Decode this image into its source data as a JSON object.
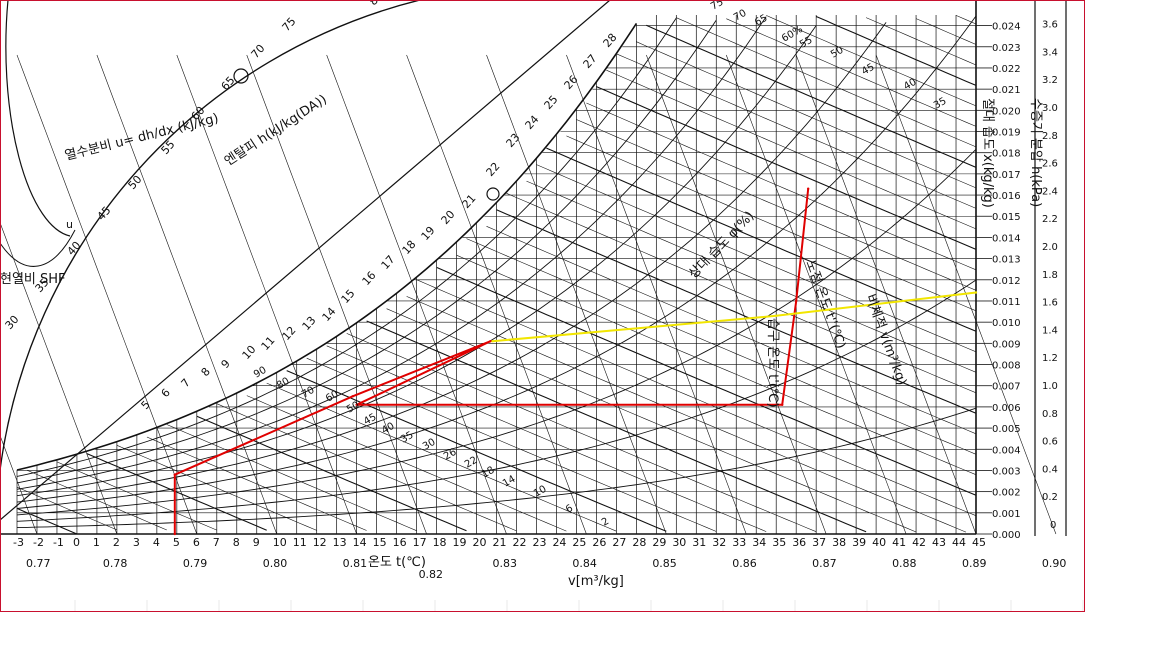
{
  "chart_data": {
    "type": "line",
    "labels": {
      "x_axis": "온도 t(℃)",
      "v_axis": "v[m³/kg]",
      "enthalpy": "엔탈피 h(kJ/kg(DA))",
      "rh": "상대 습도 φ(%)",
      "shf": "현열비 SHF",
      "heat_ratio": "열수분비 u= dh/dx (kJ/kg)",
      "abs_humidity": "절대 습도 x(kg/kg)",
      "vapor_pressure": "수증기 분압 h(kPa)",
      "wet_bulb": "습구 온도 t'(℃)",
      "dew_point": "노점 온도 t''(℃)",
      "spec_volume": "비체적 v(m³/kg)",
      "u_symbol": "u"
    },
    "x_ticks": [
      -3,
      -2,
      -1,
      0,
      1,
      2,
      3,
      4,
      5,
      6,
      7,
      8,
      9,
      10,
      11,
      12,
      13,
      14,
      15,
      16,
      17,
      18,
      19,
      20,
      21,
      22,
      23,
      24,
      25,
      26,
      27,
      28,
      29,
      30,
      31,
      32,
      33,
      34,
      35,
      36,
      37,
      38,
      39,
      40,
      41,
      42,
      43,
      44,
      45
    ],
    "xlim": [
      -3,
      45
    ],
    "y_ticks": [
      "0.000",
      "0.001",
      "0.002",
      "0.003",
      "0.004",
      "0.005",
      "0.006",
      "0.007",
      "0.008",
      "0.009",
      "0.010",
      "0.011",
      "0.012",
      "0.013",
      "0.014",
      "0.015",
      "0.016",
      "0.017",
      "0.018",
      "0.019",
      "0.020",
      "0.021",
      "0.022",
      "0.023",
      "0.024"
    ],
    "ylim": [
      0,
      0.0245
    ],
    "vapor_pressure_ticks": [
      "0",
      "0.2",
      "0.4",
      "0.6",
      "0.8",
      "1.0",
      "1.2",
      "1.4",
      "1.6",
      "1.8",
      "2.0",
      "2.2",
      "2.4",
      "2.6",
      "2.8",
      "3.0",
      "3.2",
      "3.4",
      "3.6"
    ],
    "v_ticks": [
      {
        "label": "0.77",
        "t": -2
      },
      {
        "label": "0.78",
        "t": 2
      },
      {
        "label": "0.79",
        "t": 6
      },
      {
        "label": "0.80",
        "t": 10
      },
      {
        "label": "0.81",
        "t": 14
      },
      {
        "label": "0.82",
        "t": 17.5
      },
      {
        "label": "0.83",
        "t": 21.5
      },
      {
        "label": "0.84",
        "t": 25.5
      },
      {
        "label": "0.85",
        "t": 29.5
      },
      {
        "label": "0.86",
        "t": 33.5
      },
      {
        "label": "0.87",
        "t": 37.5
      },
      {
        "label": "0.88",
        "t": 41.5
      },
      {
        "label": "0.89",
        "t": 45
      },
      {
        "label": "0.90",
        "t": 49
      }
    ],
    "enthalpy_ticks": [
      "5",
      "6",
      "7",
      "8",
      "9",
      "10",
      "11",
      "12",
      "13",
      "14",
      "15",
      "16",
      "17",
      "18",
      "19",
      "20",
      "21",
      "22",
      "23",
      "24",
      "25",
      "26",
      "27",
      "28",
      "30",
      "35",
      "40",
      "45",
      "50",
      "55",
      "60",
      "65",
      "70",
      "75",
      "80"
    ],
    "rh_labels": [
      "2",
      "6",
      "10",
      "14",
      "18",
      "22",
      "26",
      "30",
      "35",
      "40",
      "45",
      "50",
      "60",
      "70",
      "80",
      "90",
      "60%",
      "65",
      "70",
      "75",
      "45",
      "40",
      "35",
      "50",
      "55"
    ],
    "saturation_curve": [
      {
        "t": -3,
        "x": 0.0029
      },
      {
        "t": 0,
        "x": 0.0038
      },
      {
        "t": 5,
        "x": 0.0054
      },
      {
        "t": 10,
        "x": 0.0076
      },
      {
        "t": 15,
        "x": 0.0106
      },
      {
        "t": 20,
        "x": 0.0147
      },
      {
        "t": 25,
        "x": 0.0201
      },
      {
        "t": 28,
        "x": 0.0241
      }
    ],
    "series": [
      {
        "name": "",
        "color": "#e00000",
        "points": [
          {
            "t": 4.9,
            "x": 0.0
          },
          {
            "t": 4.9,
            "x": 0.0028
          },
          {
            "t": 13.8,
            "x": 0.0065
          },
          {
            "t": 20.7,
            "x": 0.0091
          },
          {
            "t": 14,
            "x": 0.0061
          },
          {
            "t": 35.3,
            "x": 0.0061
          },
          {
            "t": 36,
            "x": 0.011
          },
          {
            "t": 36.6,
            "x": 0.0163
          }
        ]
      },
      {
        "name": "",
        "color": "#f2e600",
        "points": [
          {
            "t": 20.8,
            "x": 0.0091
          },
          {
            "t": 35,
            "x": 0.0103
          },
          {
            "t": 45,
            "x": 0.0114
          }
        ]
      }
    ]
  }
}
